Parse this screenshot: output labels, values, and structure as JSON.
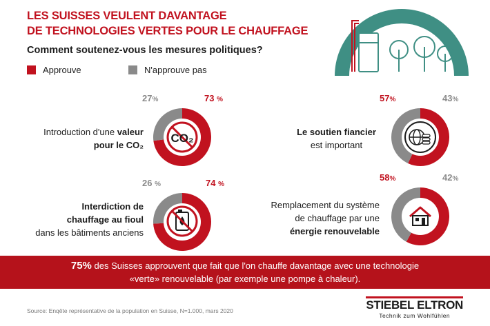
{
  "header": {
    "title_line1": "LES SUISSES VEULENT DAVANTAGE",
    "title_line2": "DE TECHNOLOGIES VERTES POUR LE CHAUFFAGE",
    "subtitle": "Comment soutenez-vous les mesures politiques?"
  },
  "legend": {
    "approve": "Approuve",
    "disapprove": "N'approuve pas"
  },
  "colors": {
    "approve": "#c1121f",
    "disapprove": "#8a8a8a",
    "banner": "#b5121b",
    "illustration": "#3f8f84"
  },
  "chart_data": [
    {
      "type": "pie",
      "style": "donut",
      "categories": [
        "Approuve",
        "N'approuve pas"
      ],
      "values": [
        73,
        27
      ],
      "approve_label": "73",
      "disapprove_label": "27",
      "label_lines": [
        "Introduction d'une ",
        "valeur",
        "pour le CO₂"
      ],
      "icon": "co2-crossed-icon",
      "icon_text": "CO₂"
    },
    {
      "type": "pie",
      "style": "donut",
      "categories": [
        "Approuve",
        "N'approuve pas"
      ],
      "values": [
        57,
        43
      ],
      "approve_label": "57",
      "disapprove_label": "43",
      "label_lines": [
        "Le soutien fiancier",
        "est important"
      ],
      "icon": "globe-coins-icon"
    },
    {
      "type": "pie",
      "style": "donut",
      "categories": [
        "Approuve",
        "N'approuve pas"
      ],
      "values": [
        74,
        26
      ],
      "approve_label": "74",
      "disapprove_label": "26",
      "label_lines": [
        "Interdiction de",
        "chauffage au fioul",
        "dans les bâtiments anciens"
      ],
      "icon": "oil-can-crossed-icon"
    },
    {
      "type": "pie",
      "style": "donut",
      "categories": [
        "Approuve",
        "N'approuve pas"
      ],
      "values": [
        58,
        42
      ],
      "approve_label": "58",
      "disapprove_label": "42",
      "label_lines": [
        "Remplacement du système",
        "de chauffage par une",
        "énergie renouvelable"
      ],
      "icon": "house-icon"
    }
  ],
  "percent_symbol": "%",
  "banner": {
    "highlight": "75%",
    "rest_line1": " des Suisses approuvent que fait que l'on chauffe davantage avec une technologie",
    "line2": "«verte» renouvelable (par exemple une pompe à chaleur)."
  },
  "footer": {
    "source": "Source: Enqête représentative de la population en Suisse, N=1.000, mars 2020",
    "brand": "STIEBEL ELTRON",
    "tagline": "Technik zum Wohlfühlen"
  }
}
